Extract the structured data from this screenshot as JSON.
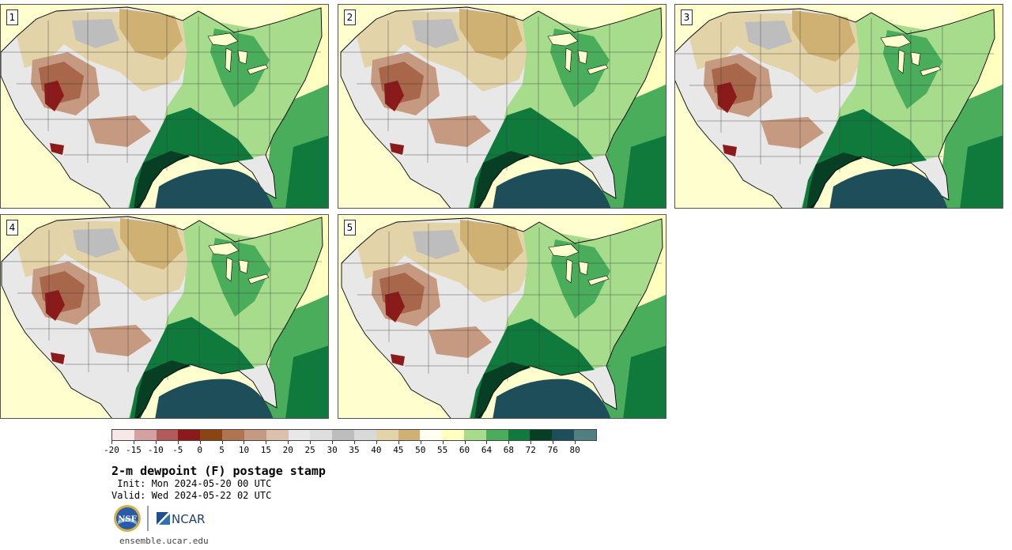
{
  "panels": [
    {
      "label": "1"
    },
    {
      "label": "2"
    },
    {
      "label": "3"
    },
    {
      "label": "4"
    },
    {
      "label": "5"
    }
  ],
  "colorbar": {
    "colors": [
      "#f6e8e8",
      "#d4a0a0",
      "#b35a5a",
      "#8b1a1a",
      "#8b4513",
      "#b07550",
      "#c59a80",
      "#dcc0ae",
      "#e8e8e8",
      "#dedede",
      "#bdbdbd",
      "#d9d9d9",
      "#e3d3a8",
      "#cfb173",
      "#fffef0",
      "#ffffc0",
      "#a6dc8c",
      "#4aad5c",
      "#0f7a3c",
      "#063f24",
      "#1e4e5a",
      "#4f7f7f"
    ],
    "ticks": [
      "-20",
      "-15",
      "-10",
      "-5",
      "0",
      "5",
      "10",
      "15",
      "20",
      "25",
      "30",
      "35",
      "40",
      "45",
      "50",
      "55",
      "60",
      "64",
      "68",
      "72",
      "76",
      "80"
    ]
  },
  "title": "2-m dewpoint (F) postage stamp",
  "init_line": " Init: Mon 2024-05-20 00 UTC",
  "valid_line": "Valid: Wed 2024-05-22 02 UTC",
  "logos": {
    "nsf": "NSF",
    "ncar": "NCAR"
  },
  "website": "ensemble.ucar.edu",
  "palette": {
    "ocean_pale": "#fffecf",
    "ocean_light": "#ffffc0",
    "tan": "#cfb173",
    "tan_light": "#e3d3a8",
    "gray": "#bdbdbd",
    "gray_light": "#e8e8e8",
    "brown_dark": "#8b1a1a",
    "brown": "#a8664a",
    "brown_light": "#c59a80",
    "green_light": "#a6dc8c",
    "green": "#4aad5c",
    "green_dark": "#0f7a3c",
    "green_darkest": "#063f24",
    "teal": "#1e4e5a"
  }
}
